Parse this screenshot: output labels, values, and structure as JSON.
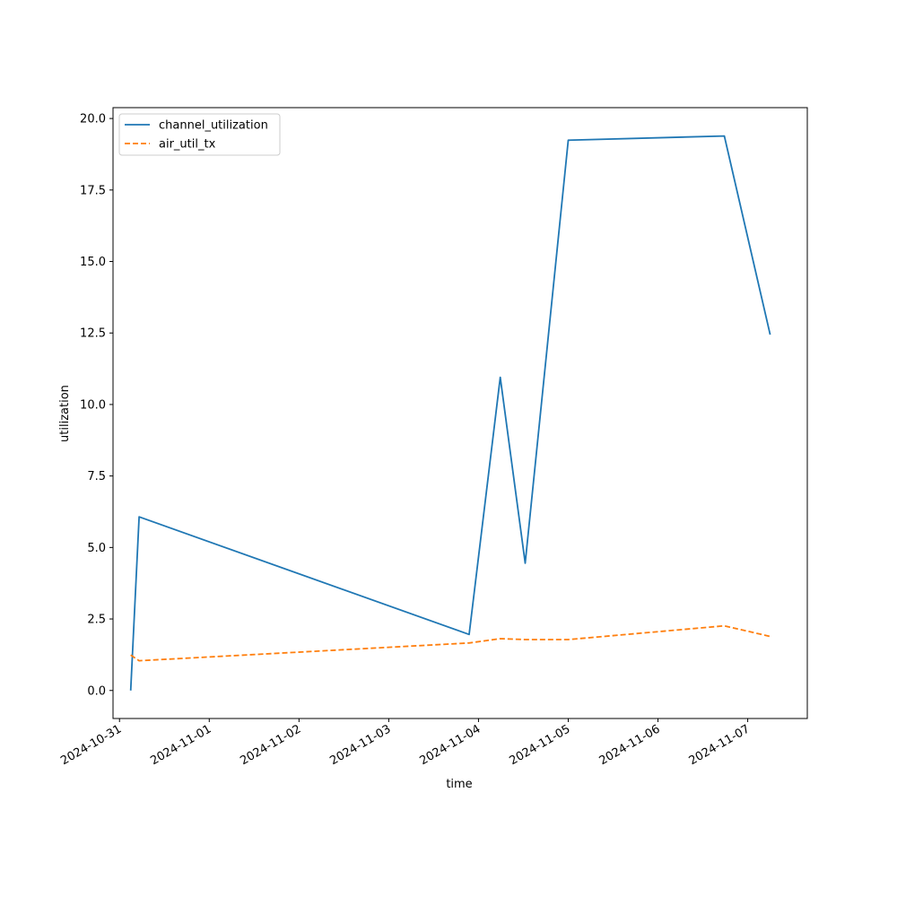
{
  "chart_data": {
    "type": "line",
    "title": "",
    "xlabel": "time",
    "ylabel": "utilization",
    "x_type": "datetime",
    "xlim": [
      "2024-10-30T22:16",
      "2024-11-07T15:56"
    ],
    "ylim": [
      -0.98,
      20.38
    ],
    "x_ticks": [
      "2024-10-31",
      "2024-11-01",
      "2024-11-02",
      "2024-11-03",
      "2024-11-04",
      "2024-11-05",
      "2024-11-06",
      "2024-11-07"
    ],
    "y_ticks": [
      "0.0",
      "2.5",
      "5.0",
      "7.5",
      "10.0",
      "12.5",
      "15.0",
      "17.5",
      "20.0"
    ],
    "grid": false,
    "legend_position": "top-left",
    "series": [
      {
        "name": "channel_utilization",
        "color": "#1f77b4",
        "dash": "solid",
        "points": [
          [
            "2024-10-31T03:00",
            0.0
          ],
          [
            "2024-10-31T05:15",
            6.07
          ],
          [
            "2024-11-03T21:30",
            1.96
          ],
          [
            "2024-11-04T05:50",
            10.95
          ],
          [
            "2024-11-04T12:30",
            4.45
          ],
          [
            "2024-11-05T00:00",
            19.24
          ],
          [
            "2024-11-06T17:45",
            19.39
          ],
          [
            "2024-11-07T06:00",
            12.44
          ]
        ]
      },
      {
        "name": "air_util_tx",
        "color": "#ff7f0e",
        "dash": "dashed",
        "points": [
          [
            "2024-10-31T03:00",
            1.24
          ],
          [
            "2024-10-31T05:15",
            1.04
          ],
          [
            "2024-11-03T21:30",
            1.66
          ],
          [
            "2024-11-04T05:50",
            1.81
          ],
          [
            "2024-11-04T12:30",
            1.78
          ],
          [
            "2024-11-05T00:00",
            1.78
          ],
          [
            "2024-11-06T17:45",
            2.26
          ],
          [
            "2024-11-07T06:00",
            1.89
          ]
        ]
      }
    ]
  }
}
